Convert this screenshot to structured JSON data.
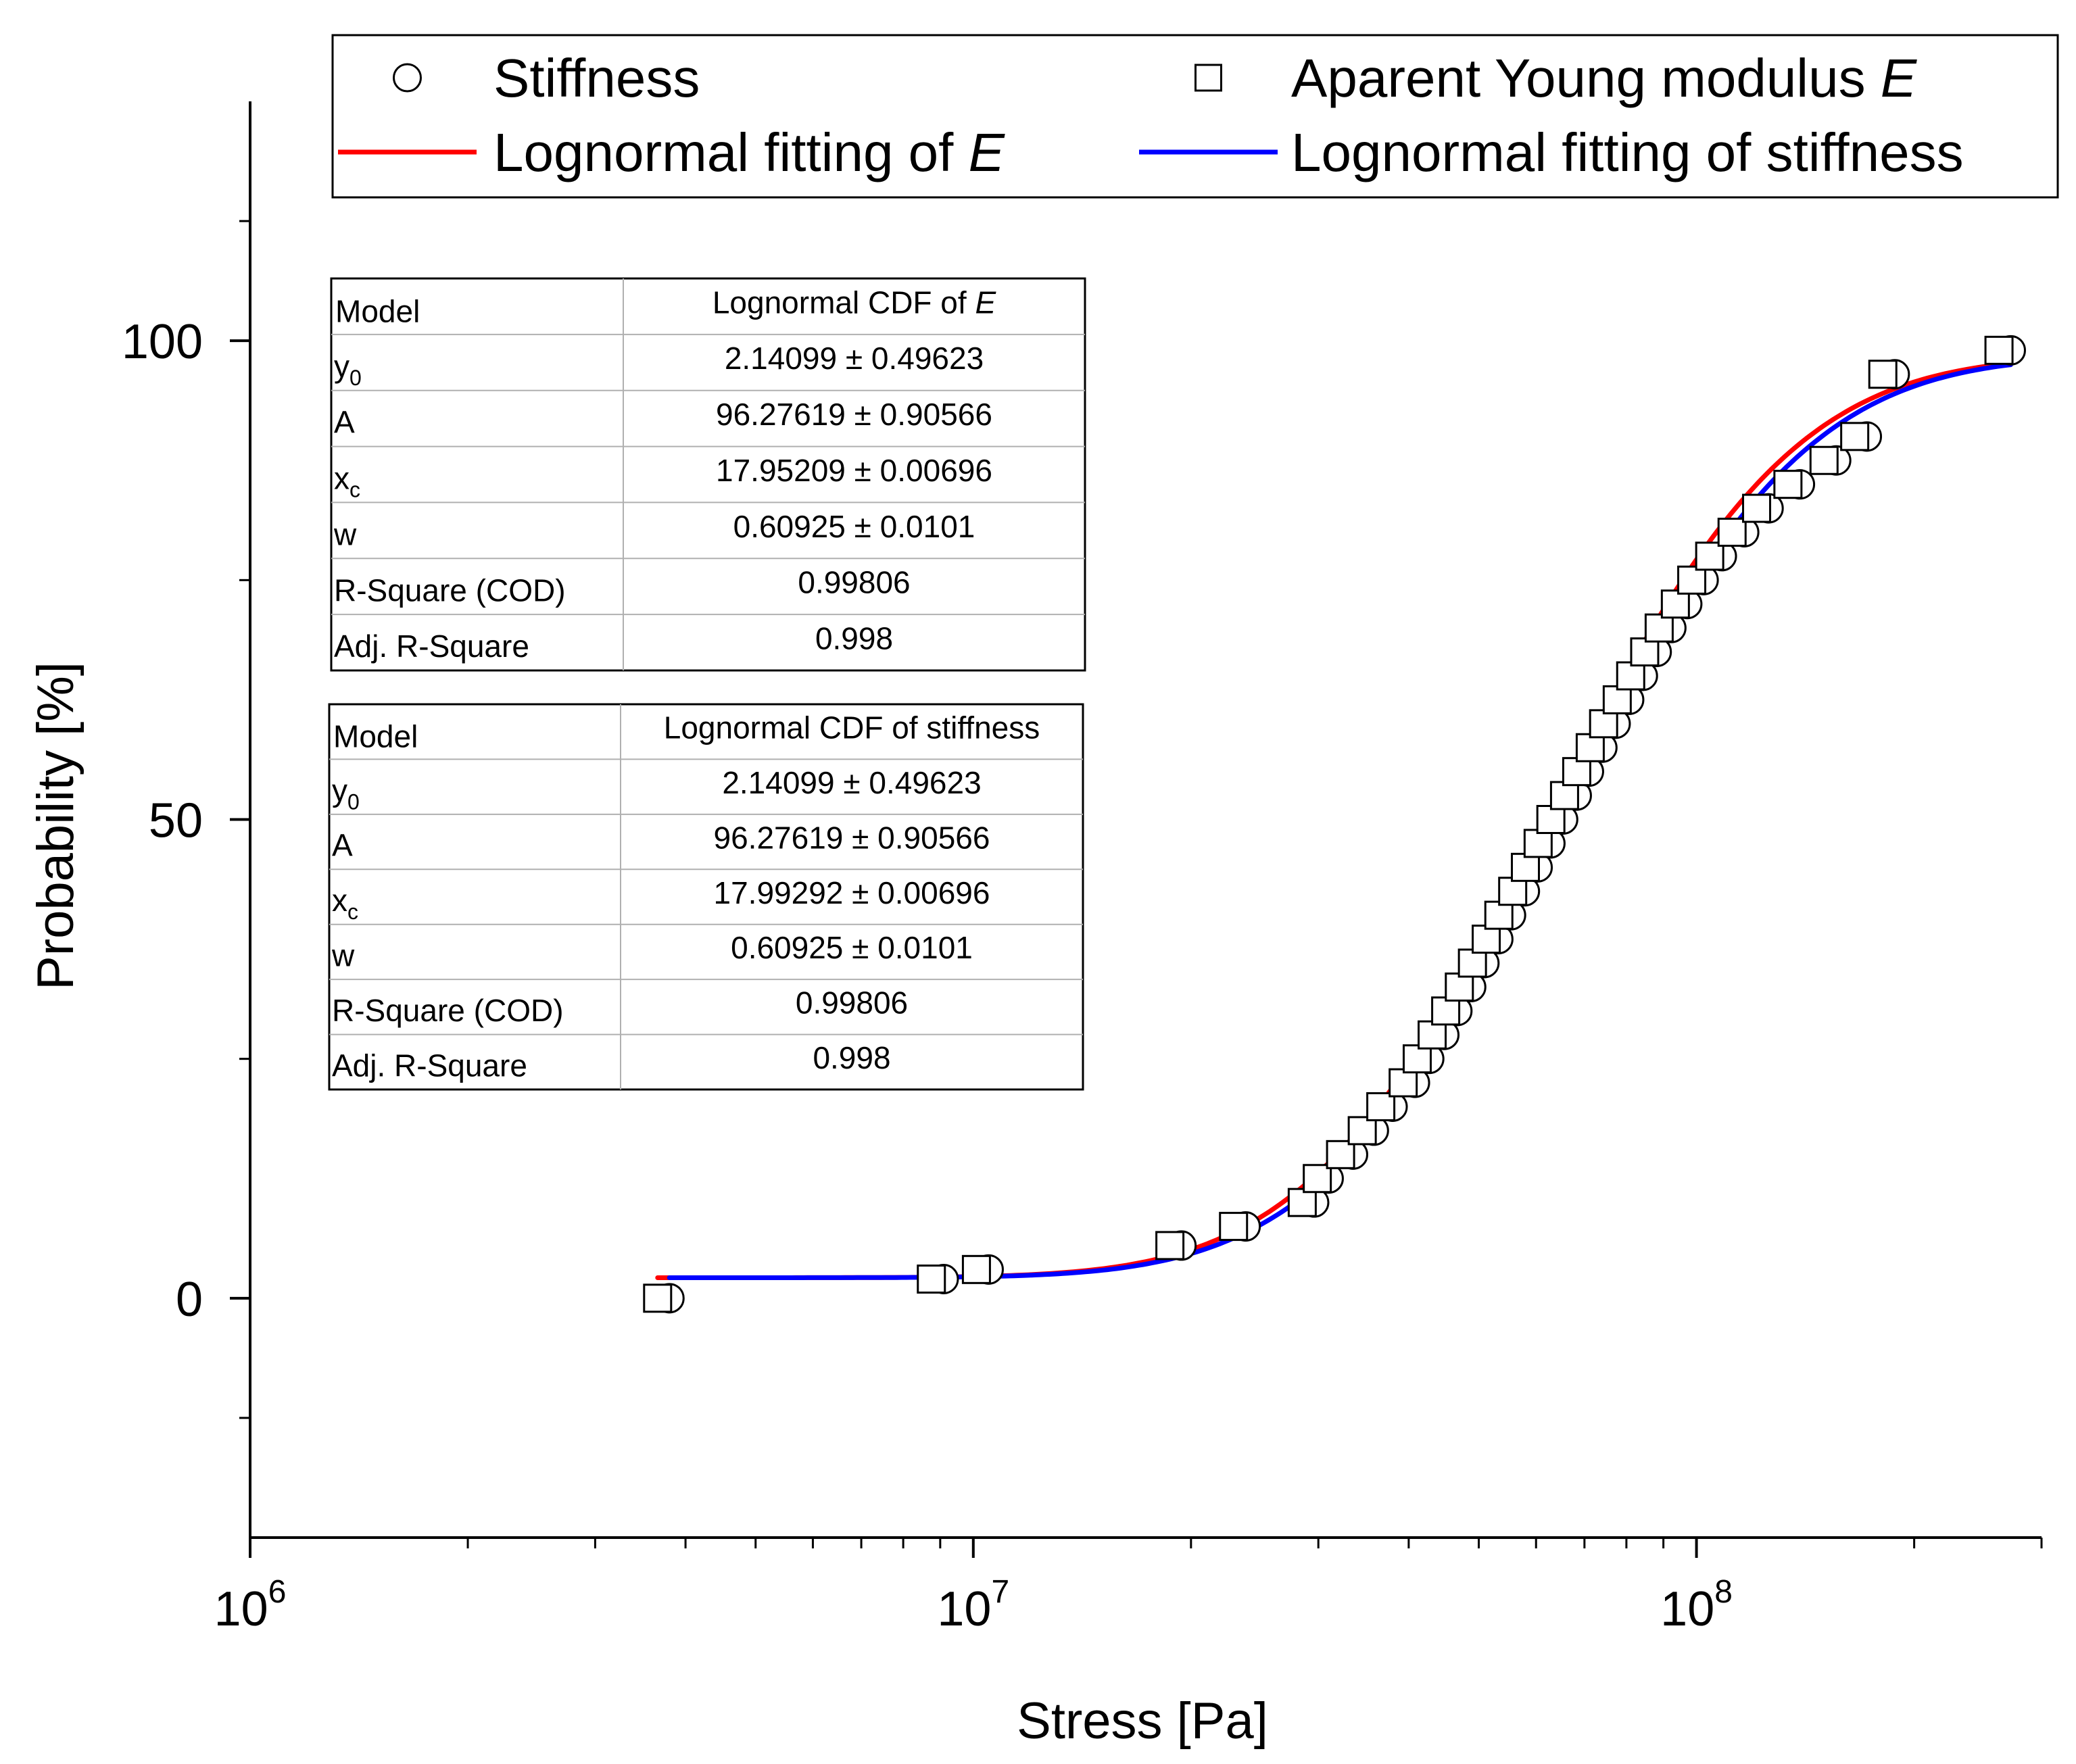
{
  "chart_data": {
    "type": "scatter",
    "title": "",
    "xlabel": "Stress [Pa]",
    "ylabel": "Probability [%]",
    "x_scale": "log",
    "xlim": [
      1000000,
      300000000
    ],
    "ylim": [
      -25,
      125
    ],
    "x_ticks": [
      {
        "value": 1000000,
        "base": "10",
        "exp": "6"
      },
      {
        "value": 10000000,
        "base": "10",
        "exp": "7"
      },
      {
        "value": 100000000,
        "base": "10",
        "exp": "8"
      }
    ],
    "y_ticks": [
      {
        "value": 0,
        "label": "0"
      },
      {
        "value": 50,
        "label": "50"
      },
      {
        "value": 100,
        "label": "100"
      }
    ],
    "y_minor_ticks": [
      -12.5,
      25,
      75,
      112.5
    ],
    "grid": false,
    "legend": {
      "position": "top",
      "entries": [
        {
          "id": "stiffness",
          "marker": "circle",
          "text": "Stiffness",
          "italic": ""
        },
        {
          "id": "modulus",
          "marker": "square",
          "text": "Aparent Young modulus ",
          "italic": "E"
        },
        {
          "id": "fit_e",
          "line_color": "#ff0000",
          "text": "Lognormal fitting of ",
          "italic": "E"
        },
        {
          "id": "fit_stiffness",
          "line_color": "#0000ff",
          "text": "Lognormal fitting of stiffness",
          "italic": ""
        }
      ]
    },
    "series": [
      {
        "name": "Stiffness",
        "marker": "circle",
        "x": [
          3800000,
          9100000,
          10500000,
          19400000,
          23800000,
          29600000,
          31000000,
          33500000,
          35800000,
          38000000,
          40800000,
          42700000,
          44800000,
          46700000,
          48800000,
          50900000,
          53200000,
          55400000,
          57900000,
          60300000,
          62800000,
          65400000,
          68300000,
          71000000,
          74100000,
          77300000,
          80700000,
          84300000,
          88100000,
          92300000,
          97100000,
          102300000,
          108400000,
          116400000,
          125800000,
          139000000,
          156000000,
          172000000,
          188000000,
          272000000
        ],
        "y": [
          0.0,
          2.0,
          3.0,
          5.5,
          7.5,
          10.0,
          12.5,
          15.0,
          17.5,
          20.0,
          22.5,
          25.0,
          27.5,
          30.0,
          32.5,
          35.0,
          37.5,
          40.0,
          42.5,
          45.0,
          47.5,
          50.0,
          52.5,
          55.0,
          57.5,
          60.0,
          62.5,
          65.0,
          67.5,
          70.0,
          72.5,
          75.0,
          77.5,
          80.0,
          82.5,
          85.0,
          87.5,
          90.0,
          96.5,
          99.0
        ]
      },
      {
        "name": "Aparent Young modulus E",
        "marker": "square",
        "x": [
          3660000,
          8750000,
          10100000,
          18700000,
          22900000,
          28500000,
          29900000,
          32200000,
          34500000,
          36600000,
          39300000,
          41100000,
          43100000,
          45000000,
          47000000,
          49000000,
          51200000,
          53300000,
          55700000,
          58000000,
          60400000,
          62900000,
          65700000,
          68300000,
          71300000,
          74400000,
          77700000,
          81100000,
          84800000,
          88800000,
          93500000,
          98500000,
          104300000,
          112000000,
          121100000,
          133800000,
          150100000,
          165500000,
          181000000,
          262000000
        ],
        "y": [
          0.0,
          2.0,
          3.0,
          5.5,
          7.5,
          10.0,
          12.5,
          15.0,
          17.5,
          20.0,
          22.5,
          25.0,
          27.5,
          30.0,
          32.5,
          35.0,
          37.5,
          40.0,
          42.5,
          45.0,
          47.5,
          50.0,
          52.5,
          55.0,
          57.5,
          60.0,
          62.5,
          65.0,
          67.5,
          70.0,
          72.5,
          75.0,
          77.5,
          80.0,
          82.5,
          85.0,
          87.5,
          90.0,
          96.5,
          99.0
        ]
      },
      {
        "name": "Lognormal fitting of E",
        "type": "line",
        "color": "#ff0000",
        "function": "lognormal_cdf",
        "y0": 2.14099,
        "A": 96.27619,
        "xc": 17.95209,
        "w": 0.60925,
        "x_range": [
          3660000,
          262000000
        ]
      },
      {
        "name": "Lognormal fitting of stiffness",
        "type": "line",
        "color": "#0000ff",
        "function": "lognormal_cdf",
        "y0": 2.14099,
        "A": 96.27619,
        "xc": 17.99292,
        "w": 0.60925,
        "x_range": [
          3800000,
          272000000
        ]
      }
    ],
    "tables": [
      {
        "id": "table_e",
        "header": {
          "left": "Model",
          "right_text": "Lognormal CDF of ",
          "right_italic": "E"
        },
        "rows": [
          {
            "param": "y",
            "sub": "0",
            "value": "2.14099 ± 0.49623"
          },
          {
            "param": "A",
            "sub": "",
            "value": "96.27619 ± 0.90566"
          },
          {
            "param": "x",
            "sub": "c",
            "value": "17.95209 ± 0.00696"
          },
          {
            "param": "w",
            "sub": "",
            "value": "0.60925 ± 0.0101"
          },
          {
            "param": "R-Square (COD)",
            "sub": "",
            "value": "0.99806"
          },
          {
            "param": "Adj. R-Square",
            "sub": "",
            "value": "0.998"
          }
        ]
      },
      {
        "id": "table_stiffness",
        "header": {
          "left": "Model",
          "right_text": "Lognormal CDF of stiffness",
          "right_italic": ""
        },
        "rows": [
          {
            "param": "y",
            "sub": "0",
            "value": "2.14099 ± 0.49623"
          },
          {
            "param": "A",
            "sub": "",
            "value": "96.27619 ± 0.90566"
          },
          {
            "param": "x",
            "sub": "c",
            "value": "17.99292 ± 0.00696"
          },
          {
            "param": "w",
            "sub": "",
            "value": "0.60925 ± 0.0101"
          },
          {
            "param": "R-Square (COD)",
            "sub": "",
            "value": "0.99806"
          },
          {
            "param": "Adj. R-Square",
            "sub": "",
            "value": "0.998"
          }
        ]
      }
    ]
  }
}
